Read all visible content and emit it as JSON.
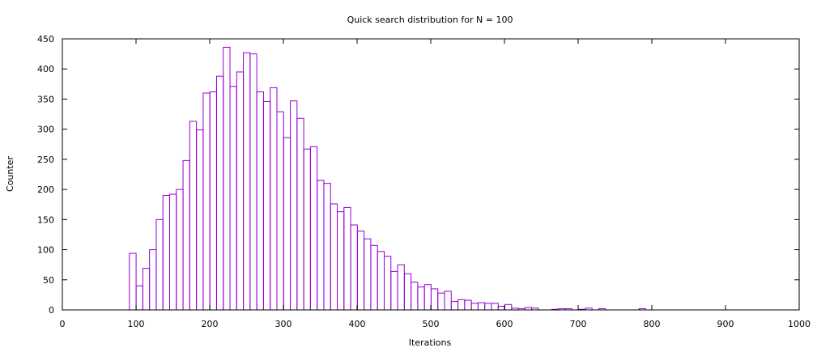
{
  "chart_data": {
    "type": "bar",
    "title": "Quick search distribution for N = 100",
    "xlabel": "Iterations",
    "ylabel": "Counter",
    "xlim": [
      0,
      1000
    ],
    "ylim": [
      0,
      450
    ],
    "bin_width": 9.1,
    "xticks": [
      0,
      100,
      200,
      300,
      400,
      500,
      600,
      700,
      800,
      900,
      1000
    ],
    "yticks": [
      0,
      50,
      100,
      150,
      200,
      250,
      300,
      350,
      400,
      450
    ],
    "grid": false,
    "legend": "none",
    "bar_color": "#9400d3",
    "bins": [
      {
        "x": 91.0,
        "y": 94
      },
      {
        "x": 100.1,
        "y": 40
      },
      {
        "x": 109.2,
        "y": 69
      },
      {
        "x": 118.3,
        "y": 100
      },
      {
        "x": 127.4,
        "y": 150
      },
      {
        "x": 136.5,
        "y": 190
      },
      {
        "x": 145.6,
        "y": 192
      },
      {
        "x": 154.7,
        "y": 200
      },
      {
        "x": 163.8,
        "y": 248
      },
      {
        "x": 172.9,
        "y": 313
      },
      {
        "x": 182.0,
        "y": 299
      },
      {
        "x": 191.1,
        "y": 360
      },
      {
        "x": 200.2,
        "y": 362
      },
      {
        "x": 209.3,
        "y": 388
      },
      {
        "x": 218.4,
        "y": 436
      },
      {
        "x": 227.5,
        "y": 371
      },
      {
        "x": 236.6,
        "y": 395
      },
      {
        "x": 245.7,
        "y": 427
      },
      {
        "x": 254.8,
        "y": 425
      },
      {
        "x": 263.9,
        "y": 362
      },
      {
        "x": 273.0,
        "y": 346
      },
      {
        "x": 282.1,
        "y": 369
      },
      {
        "x": 291.2,
        "y": 329
      },
      {
        "x": 300.3,
        "y": 286
      },
      {
        "x": 309.4,
        "y": 347
      },
      {
        "x": 318.5,
        "y": 318
      },
      {
        "x": 327.6,
        "y": 267
      },
      {
        "x": 336.7,
        "y": 271
      },
      {
        "x": 345.8,
        "y": 215
      },
      {
        "x": 354.9,
        "y": 210
      },
      {
        "x": 364.0,
        "y": 176
      },
      {
        "x": 373.1,
        "y": 163
      },
      {
        "x": 382.2,
        "y": 170
      },
      {
        "x": 391.3,
        "y": 141
      },
      {
        "x": 400.4,
        "y": 131
      },
      {
        "x": 409.5,
        "y": 118
      },
      {
        "x": 418.6,
        "y": 107
      },
      {
        "x": 427.7,
        "y": 97
      },
      {
        "x": 436.8,
        "y": 89
      },
      {
        "x": 445.9,
        "y": 64
      },
      {
        "x": 455.0,
        "y": 75
      },
      {
        "x": 464.1,
        "y": 60
      },
      {
        "x": 473.2,
        "y": 46
      },
      {
        "x": 482.3,
        "y": 38
      },
      {
        "x": 491.4,
        "y": 42
      },
      {
        "x": 500.5,
        "y": 35
      },
      {
        "x": 509.6,
        "y": 28
      },
      {
        "x": 518.7,
        "y": 31
      },
      {
        "x": 527.8,
        "y": 14
      },
      {
        "x": 536.9,
        "y": 17
      },
      {
        "x": 546.0,
        "y": 16
      },
      {
        "x": 555.1,
        "y": 11
      },
      {
        "x": 564.2,
        "y": 12
      },
      {
        "x": 573.3,
        "y": 11
      },
      {
        "x": 582.4,
        "y": 11
      },
      {
        "x": 591.5,
        "y": 6
      },
      {
        "x": 600.6,
        "y": 9
      },
      {
        "x": 609.7,
        "y": 3
      },
      {
        "x": 618.8,
        "y": 2
      },
      {
        "x": 627.9,
        "y": 4
      },
      {
        "x": 637.0,
        "y": 3
      },
      {
        "x": 646.1,
        "y": 0
      },
      {
        "x": 655.2,
        "y": 0
      },
      {
        "x": 664.3,
        "y": 1
      },
      {
        "x": 673.4,
        "y": 2
      },
      {
        "x": 682.5,
        "y": 2
      },
      {
        "x": 691.6,
        "y": 0
      },
      {
        "x": 700.7,
        "y": 1
      },
      {
        "x": 709.8,
        "y": 3
      },
      {
        "x": 718.9,
        "y": 0
      },
      {
        "x": 728.0,
        "y": 2
      },
      {
        "x": 737.1,
        "y": 0
      },
      {
        "x": 746.2,
        "y": 0
      },
      {
        "x": 755.3,
        "y": 0
      },
      {
        "x": 764.4,
        "y": 0
      },
      {
        "x": 773.5,
        "y": 0
      },
      {
        "x": 782.6,
        "y": 2
      }
    ]
  }
}
